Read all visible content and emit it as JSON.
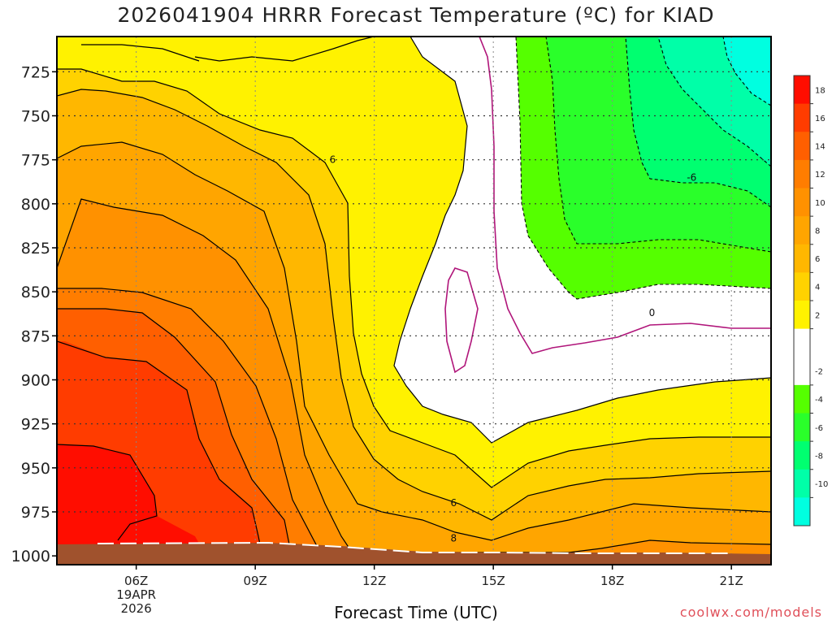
{
  "title": "2026041904 HRRR Forecast Temperature (ºC) for KIAD",
  "xlabel": "Forecast Time (UTC)",
  "credit": "coolwx.com/models",
  "chart_data": {
    "type": "heatmap",
    "x_axis": {
      "ticks": [
        {
          "hour": 6,
          "label": "06Z",
          "sub1": "19APR",
          "sub2": "2026"
        },
        {
          "hour": 9,
          "label": "09Z"
        },
        {
          "hour": 12,
          "label": "12Z"
        },
        {
          "hour": 15,
          "label": "15Z"
        },
        {
          "hour": 18,
          "label": "18Z"
        },
        {
          "hour": 21,
          "label": "21Z"
        }
      ],
      "range": [
        4,
        22
      ]
    },
    "y_axis": {
      "ticks": [
        725,
        750,
        775,
        800,
        825,
        850,
        875,
        900,
        925,
        950,
        975,
        1000
      ],
      "range": [
        705,
        1005
      ],
      "inverted": true
    },
    "grid": true,
    "colorbar": {
      "levels": [
        {
          "label": "18",
          "color": "#ff0d00"
        },
        {
          "label": "16",
          "color": "#ff3c00"
        },
        {
          "label": "14",
          "color": "#ff5f00"
        },
        {
          "label": "12",
          "color": "#ff7d00"
        },
        {
          "label": "10",
          "color": "#ff9100"
        },
        {
          "label": "8",
          "color": "#ffa500"
        },
        {
          "label": "6",
          "color": "#ffb700"
        },
        {
          "label": "4",
          "color": "#ffd200"
        },
        {
          "label": "2",
          "color": "#fff200"
        },
        {
          "label": "",
          "color": "#ffffff"
        },
        {
          "label": "-2",
          "color": "#ffffff"
        },
        {
          "label": "-4",
          "color": "#55ff00"
        },
        {
          "label": "-6",
          "color": "#2aff2a"
        },
        {
          "label": "-8",
          "color": "#00ff70"
        },
        {
          "label": "-10",
          "color": "#00ffa8"
        },
        {
          "label": "",
          "color": "#00ffe0"
        }
      ]
    },
    "contour_labels": [
      {
        "text": "6",
        "hour": 10.95,
        "p": 775
      },
      {
        "text": "-6",
        "hour": 20.0,
        "p": 785
      },
      {
        "text": "0",
        "hour": 19.0,
        "p": 862
      },
      {
        "text": "6",
        "hour": 14.0,
        "p": 970
      },
      {
        "text": "8",
        "hour": 14.0,
        "p": 990
      }
    ],
    "ground_color": "#a0522d"
  }
}
